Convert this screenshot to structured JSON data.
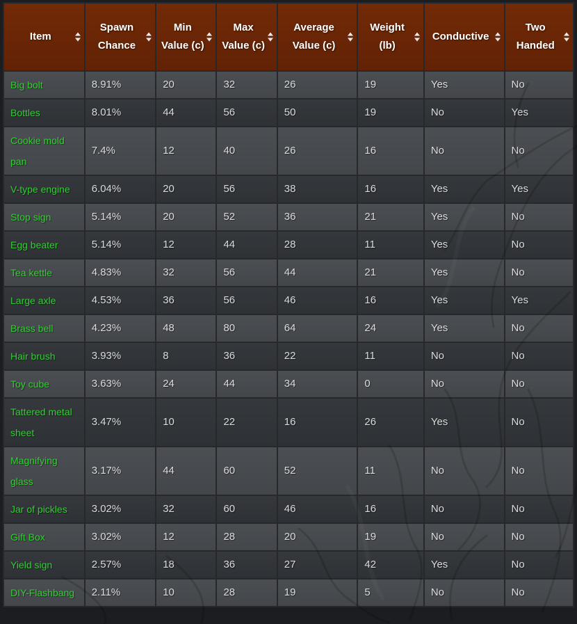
{
  "colors": {
    "page_bg": "#1b1d20",
    "header_bg": "#722a07",
    "row_light": "#4b4e52",
    "row_dark": "#35383c",
    "border": "#26282b",
    "item_link_green": "#33cc33",
    "cell_text": "#d9dbdd",
    "header_text": "#ffffff"
  },
  "table": {
    "columns": [
      {
        "key": "item",
        "label": "Item",
        "sortable": true
      },
      {
        "key": "spawn_chance",
        "label": "Spawn Chance",
        "sortable": true
      },
      {
        "key": "min_value",
        "label": "Min Value (c)",
        "sortable": true
      },
      {
        "key": "max_value",
        "label": "Max Value (c)",
        "sortable": true
      },
      {
        "key": "average_value",
        "label": "Average Value (c)",
        "sortable": true
      },
      {
        "key": "weight",
        "label": "Weight (lb)",
        "sortable": true
      },
      {
        "key": "conductive",
        "label": "Conductive",
        "sortable": true
      },
      {
        "key": "two_handed",
        "label": "Two Handed",
        "sortable": true
      }
    ],
    "column_keys": [
      "item",
      "spawn_chance",
      "min_value",
      "max_value",
      "average_value",
      "weight",
      "conductive",
      "two_handed"
    ],
    "rows": [
      {
        "item": "Big bolt",
        "spawn_chance": "8.91%",
        "min_value": "20",
        "max_value": "32",
        "average_value": "26",
        "weight": "19",
        "conductive": "Yes",
        "two_handed": "No"
      },
      {
        "item": "Bottles",
        "spawn_chance": "8.01%",
        "min_value": "44",
        "max_value": "56",
        "average_value": "50",
        "weight": "19",
        "conductive": "No",
        "two_handed": "Yes"
      },
      {
        "item": "Cookie mold pan",
        "spawn_chance": "7.4%",
        "min_value": "12",
        "max_value": "40",
        "average_value": "26",
        "weight": "16",
        "conductive": "No",
        "two_handed": "No"
      },
      {
        "item": "V-type engine",
        "spawn_chance": "6.04%",
        "min_value": "20",
        "max_value": "56",
        "average_value": "38",
        "weight": "16",
        "conductive": "Yes",
        "two_handed": "Yes"
      },
      {
        "item": "Stop sign",
        "spawn_chance": "5.14%",
        "min_value": "20",
        "max_value": "52",
        "average_value": "36",
        "weight": "21",
        "conductive": "Yes",
        "two_handed": "No"
      },
      {
        "item": "Egg beater",
        "spawn_chance": "5.14%",
        "min_value": "12",
        "max_value": "44",
        "average_value": "28",
        "weight": "11",
        "conductive": "Yes",
        "two_handed": "No"
      },
      {
        "item": "Tea kettle",
        "spawn_chance": "4.83%",
        "min_value": "32",
        "max_value": "56",
        "average_value": "44",
        "weight": "21",
        "conductive": "Yes",
        "two_handed": "No"
      },
      {
        "item": "Large axle",
        "spawn_chance": "4.53%",
        "min_value": "36",
        "max_value": "56",
        "average_value": "46",
        "weight": "16",
        "conductive": "Yes",
        "two_handed": "Yes"
      },
      {
        "item": "Brass bell",
        "spawn_chance": "4.23%",
        "min_value": "48",
        "max_value": "80",
        "average_value": "64",
        "weight": "24",
        "conductive": "Yes",
        "two_handed": "No"
      },
      {
        "item": "Hair brush",
        "spawn_chance": "3.93%",
        "min_value": "8",
        "max_value": "36",
        "average_value": "22",
        "weight": "11",
        "conductive": "No",
        "two_handed": "No"
      },
      {
        "item": "Toy cube",
        "spawn_chance": "3.63%",
        "min_value": "24",
        "max_value": "44",
        "average_value": "34",
        "weight": "0",
        "conductive": "No",
        "two_handed": "No"
      },
      {
        "item": "Tattered metal sheet",
        "spawn_chance": "3.47%",
        "min_value": "10",
        "max_value": "22",
        "average_value": "16",
        "weight": "26",
        "conductive": "Yes",
        "two_handed": "No"
      },
      {
        "item": "Magnifying glass",
        "spawn_chance": "3.17%",
        "min_value": "44",
        "max_value": "60",
        "average_value": "52",
        "weight": "11",
        "conductive": "No",
        "two_handed": "No"
      },
      {
        "item": "Jar of pickles",
        "spawn_chance": "3.02%",
        "min_value": "32",
        "max_value": "60",
        "average_value": "46",
        "weight": "16",
        "conductive": "No",
        "two_handed": "No"
      },
      {
        "item": "Gift Box",
        "spawn_chance": "3.02%",
        "min_value": "12",
        "max_value": "28",
        "average_value": "20",
        "weight": "19",
        "conductive": "No",
        "two_handed": "No"
      },
      {
        "item": "Yield sign",
        "spawn_chance": "2.57%",
        "min_value": "18",
        "max_value": "36",
        "average_value": "27",
        "weight": "42",
        "conductive": "Yes",
        "two_handed": "No"
      },
      {
        "item": "DIY-Flashbang",
        "spawn_chance": "2.11%",
        "min_value": "10",
        "max_value": "28",
        "average_value": "19",
        "weight": "5",
        "conductive": "No",
        "two_handed": "No"
      }
    ]
  }
}
